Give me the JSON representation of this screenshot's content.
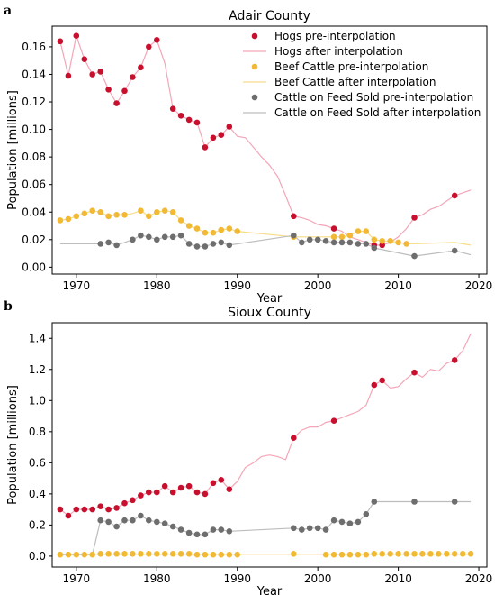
{
  "figure": {
    "panel_a": "a",
    "panel_b": "b"
  },
  "colors": {
    "hogs": "#c8102e",
    "hogs_line": "#f4a6b8",
    "beef": "#f2b935",
    "beef_line": "#f7dc8a",
    "cattle": "#6e6e6e",
    "cattle_line": "#bdbdbd"
  },
  "chart_data": [
    {
      "type": "scatter",
      "title": "Adair County",
      "xlabel": "Year",
      "ylabel": "Population [millions]",
      "xlim": [
        1967,
        2021
      ],
      "ylim": [
        -0.005,
        0.175
      ],
      "xticks": [
        1970,
        1980,
        1990,
        2000,
        2010,
        2020
      ],
      "xtick_labels": [
        "1970",
        "1980",
        "1990",
        "2000",
        "2010",
        "2020"
      ],
      "yticks": [
        0.0,
        0.02,
        0.04,
        0.06,
        0.08,
        0.1,
        0.12,
        0.14,
        0.16
      ],
      "ytick_labels": [
        "0.00",
        "0.02",
        "0.04",
        "0.06",
        "0.08",
        "0.10",
        "0.12",
        "0.14",
        "0.16"
      ],
      "legend_position": "top-right",
      "series": [
        {
          "name": "Hogs pre-interpolation",
          "kind": "points",
          "color_key": "hogs",
          "x": [
            1968,
            1969,
            1970,
            1971,
            1972,
            1973,
            1974,
            1975,
            1976,
            1977,
            1978,
            1979,
            1980,
            1982,
            1983,
            1984,
            1985,
            1986,
            1987,
            1988,
            1989,
            1997,
            2002,
            2007,
            2008,
            2012,
            2017
          ],
          "y": [
            0.164,
            0.139,
            0.168,
            0.151,
            0.14,
            0.142,
            0.129,
            0.119,
            0.128,
            0.138,
            0.145,
            0.16,
            0.165,
            0.115,
            0.11,
            0.107,
            0.105,
            0.087,
            0.094,
            0.096,
            0.102,
            0.037,
            0.028,
            0.016,
            0.016,
            0.036,
            0.052
          ]
        },
        {
          "name": "Hogs after interpolation",
          "kind": "line",
          "color_key": "hogs_line",
          "x": [
            1968,
            1969,
            1970,
            1971,
            1972,
            1973,
            1974,
            1975,
            1976,
            1977,
            1978,
            1979,
            1980,
            1981,
            1982,
            1983,
            1984,
            1985,
            1986,
            1987,
            1988,
            1989,
            1990,
            1991,
            1992,
            1993,
            1994,
            1995,
            1996,
            1997,
            1998,
            1999,
            2000,
            2001,
            2002,
            2003,
            2004,
            2005,
            2006,
            2007,
            2008,
            2009,
            2010,
            2011,
            2012,
            2013,
            2014,
            2015,
            2016,
            2017,
            2018,
            2019
          ],
          "y": [
            0.164,
            0.139,
            0.168,
            0.151,
            0.14,
            0.142,
            0.129,
            0.119,
            0.128,
            0.138,
            0.145,
            0.16,
            0.165,
            0.148,
            0.115,
            0.11,
            0.107,
            0.105,
            0.087,
            0.094,
            0.096,
            0.102,
            0.095,
            0.094,
            0.087,
            0.08,
            0.074,
            0.066,
            0.052,
            0.037,
            0.036,
            0.034,
            0.031,
            0.03,
            0.028,
            0.026,
            0.022,
            0.02,
            0.018,
            0.016,
            0.016,
            0.018,
            0.022,
            0.028,
            0.036,
            0.038,
            0.042,
            0.044,
            0.048,
            0.052,
            0.054,
            0.056
          ]
        },
        {
          "name": "Beef Cattle pre-interpolation",
          "kind": "points",
          "color_key": "beef",
          "x": [
            1968,
            1969,
            1970,
            1971,
            1972,
            1973,
            1974,
            1975,
            1976,
            1978,
            1979,
            1980,
            1981,
            1982,
            1983,
            1984,
            1985,
            1986,
            1987,
            1988,
            1989,
            1990,
            1997,
            2002,
            2003,
            2004,
            2005,
            2006,
            2007,
            2008,
            2009,
            2010,
            2011
          ],
          "y": [
            0.034,
            0.035,
            0.037,
            0.039,
            0.041,
            0.04,
            0.037,
            0.038,
            0.038,
            0.041,
            0.037,
            0.04,
            0.041,
            0.04,
            0.034,
            0.03,
            0.028,
            0.025,
            0.025,
            0.027,
            0.028,
            0.026,
            0.022,
            0.022,
            0.022,
            0.023,
            0.026,
            0.026,
            0.02,
            0.019,
            0.019,
            0.018,
            0.017
          ]
        },
        {
          "name": "Beef Cattle after interpolation",
          "kind": "line",
          "color_key": "beef_line",
          "x": [
            1968,
            1969,
            1970,
            1971,
            1972,
            1973,
            1974,
            1975,
            1976,
            1977,
            1978,
            1979,
            1980,
            1981,
            1982,
            1983,
            1984,
            1985,
            1986,
            1987,
            1988,
            1989,
            1990,
            1997,
            2002,
            2003,
            2004,
            2005,
            2006,
            2007,
            2008,
            2009,
            2010,
            2011,
            2012,
            2017,
            2019
          ],
          "y": [
            0.034,
            0.035,
            0.037,
            0.039,
            0.041,
            0.04,
            0.037,
            0.038,
            0.038,
            0.039,
            0.041,
            0.037,
            0.04,
            0.041,
            0.04,
            0.034,
            0.03,
            0.028,
            0.025,
            0.025,
            0.027,
            0.028,
            0.026,
            0.022,
            0.022,
            0.022,
            0.023,
            0.026,
            0.026,
            0.02,
            0.019,
            0.019,
            0.018,
            0.017,
            0.017,
            0.018,
            0.016
          ]
        },
        {
          "name": "Cattle on Feed Sold pre-interpolation",
          "kind": "points",
          "color_key": "cattle",
          "x": [
            1973,
            1974,
            1975,
            1977,
            1978,
            1979,
            1980,
            1981,
            1982,
            1983,
            1984,
            1985,
            1986,
            1987,
            1988,
            1989,
            1997,
            1998,
            1999,
            2000,
            2001,
            2002,
            2003,
            2004,
            2005,
            2006,
            2007,
            2012,
            2017
          ],
          "y": [
            0.017,
            0.018,
            0.016,
            0.02,
            0.023,
            0.022,
            0.02,
            0.022,
            0.022,
            0.023,
            0.017,
            0.015,
            0.015,
            0.017,
            0.018,
            0.016,
            0.023,
            0.018,
            0.02,
            0.02,
            0.019,
            0.018,
            0.018,
            0.018,
            0.017,
            0.017,
            0.014,
            0.008,
            0.012
          ]
        },
        {
          "name": "Cattle on Feed Sold after interpolation",
          "kind": "line",
          "color_key": "cattle_line",
          "x": [
            1968,
            1973,
            1974,
            1975,
            1976,
            1977,
            1978,
            1979,
            1980,
            1981,
            1982,
            1983,
            1984,
            1985,
            1986,
            1987,
            1988,
            1989,
            1997,
            1998,
            1999,
            2000,
            2001,
            2002,
            2003,
            2004,
            2005,
            2006,
            2007,
            2012,
            2017,
            2019
          ],
          "y": [
            0.017,
            0.017,
            0.018,
            0.016,
            0.018,
            0.02,
            0.023,
            0.022,
            0.02,
            0.022,
            0.022,
            0.023,
            0.017,
            0.015,
            0.015,
            0.017,
            0.018,
            0.016,
            0.023,
            0.018,
            0.02,
            0.02,
            0.019,
            0.018,
            0.018,
            0.018,
            0.017,
            0.017,
            0.014,
            0.008,
            0.012,
            0.009
          ]
        }
      ]
    },
    {
      "type": "scatter",
      "title": "Sioux County",
      "xlabel": "Year",
      "ylabel": "Population [millions]",
      "xlim": [
        1967,
        2021
      ],
      "ylim": [
        -0.07,
        1.5
      ],
      "xticks": [
        1970,
        1980,
        1990,
        2000,
        2010,
        2020
      ],
      "xtick_labels": [
        "1970",
        "1980",
        "1990",
        "2000",
        "2010",
        "2020"
      ],
      "yticks": [
        0.0,
        0.2,
        0.4,
        0.6,
        0.8,
        1.0,
        1.2,
        1.4
      ],
      "ytick_labels": [
        "0.0",
        "0.2",
        "0.4",
        "0.6",
        "0.8",
        "1.0",
        "1.2",
        "1.4"
      ],
      "series": [
        {
          "name": "Hogs pre-interpolation",
          "kind": "points",
          "color_key": "hogs",
          "x": [
            1968,
            1969,
            1970,
            1971,
            1972,
            1973,
            1974,
            1975,
            1976,
            1977,
            1978,
            1979,
            1980,
            1981,
            1982,
            1983,
            1984,
            1985,
            1986,
            1987,
            1988,
            1989,
            1997,
            2002,
            2007,
            2008,
            2012,
            2017
          ],
          "y": [
            0.3,
            0.26,
            0.3,
            0.3,
            0.3,
            0.32,
            0.3,
            0.31,
            0.34,
            0.36,
            0.39,
            0.41,
            0.41,
            0.45,
            0.41,
            0.44,
            0.45,
            0.41,
            0.4,
            0.47,
            0.49,
            0.43,
            0.76,
            0.87,
            1.1,
            1.13,
            1.18,
            1.26
          ]
        },
        {
          "name": "Hogs after interpolation",
          "kind": "line",
          "color_key": "hogs_line",
          "x": [
            1968,
            1969,
            1970,
            1971,
            1972,
            1973,
            1974,
            1975,
            1976,
            1977,
            1978,
            1979,
            1980,
            1981,
            1982,
            1983,
            1984,
            1985,
            1986,
            1987,
            1988,
            1989,
            1990,
            1991,
            1992,
            1993,
            1994,
            1995,
            1996,
            1997,
            1998,
            1999,
            2000,
            2001,
            2002,
            2003,
            2004,
            2005,
            2006,
            2007,
            2008,
            2009,
            2010,
            2011,
            2012,
            2013,
            2014,
            2015,
            2016,
            2017,
            2018,
            2019
          ],
          "y": [
            0.3,
            0.26,
            0.3,
            0.3,
            0.3,
            0.32,
            0.3,
            0.31,
            0.34,
            0.36,
            0.39,
            0.41,
            0.41,
            0.45,
            0.41,
            0.44,
            0.45,
            0.41,
            0.4,
            0.47,
            0.49,
            0.43,
            0.48,
            0.57,
            0.6,
            0.64,
            0.65,
            0.64,
            0.62,
            0.76,
            0.81,
            0.83,
            0.83,
            0.86,
            0.87,
            0.89,
            0.91,
            0.93,
            0.97,
            1.1,
            1.13,
            1.08,
            1.09,
            1.14,
            1.18,
            1.15,
            1.2,
            1.19,
            1.24,
            1.26,
            1.32,
            1.43
          ]
        },
        {
          "name": "Beef Cattle pre-interpolation",
          "kind": "points",
          "color_key": "beef",
          "x": [
            1968,
            1969,
            1970,
            1971,
            1972,
            1973,
            1974,
            1975,
            1976,
            1977,
            1978,
            1979,
            1980,
            1981,
            1982,
            1983,
            1984,
            1985,
            1986,
            1987,
            1988,
            1989,
            1990,
            1997,
            2001,
            2002,
            2003,
            2004,
            2005,
            2006,
            2007,
            2008,
            2009,
            2010,
            2011,
            2012,
            2013,
            2014,
            2015,
            2016,
            2017,
            2018,
            2019
          ],
          "y": [
            0.01,
            0.01,
            0.01,
            0.01,
            0.01,
            0.015,
            0.015,
            0.015,
            0.015,
            0.015,
            0.015,
            0.015,
            0.015,
            0.015,
            0.015,
            0.015,
            0.015,
            0.01,
            0.01,
            0.01,
            0.01,
            0.01,
            0.01,
            0.015,
            0.01,
            0.01,
            0.01,
            0.01,
            0.01,
            0.01,
            0.015,
            0.015,
            0.015,
            0.015,
            0.015,
            0.015,
            0.015,
            0.015,
            0.015,
            0.015,
            0.015,
            0.015,
            0.015
          ]
        },
        {
          "name": "Beef Cattle after interpolation",
          "kind": "line",
          "color_key": "beef_line",
          "x": [
            1968,
            2019
          ],
          "y": [
            0.012,
            0.012
          ]
        },
        {
          "name": "Cattle on Feed Sold pre-interpolation",
          "kind": "points",
          "color_key": "cattle",
          "x": [
            1973,
            1974,
            1975,
            1976,
            1977,
            1978,
            1979,
            1980,
            1981,
            1982,
            1983,
            1984,
            1985,
            1986,
            1987,
            1988,
            1989,
            1997,
            1998,
            1999,
            2000,
            2001,
            2002,
            2003,
            2004,
            2005,
            2006,
            2007,
            2012,
            2017
          ],
          "y": [
            0.23,
            0.22,
            0.19,
            0.23,
            0.23,
            0.26,
            0.23,
            0.22,
            0.21,
            0.19,
            0.17,
            0.15,
            0.14,
            0.14,
            0.17,
            0.17,
            0.16,
            0.18,
            0.17,
            0.18,
            0.18,
            0.17,
            0.23,
            0.22,
            0.21,
            0.22,
            0.27,
            0.35,
            0.35,
            0.35
          ]
        },
        {
          "name": "Cattle on Feed Sold after interpolation",
          "kind": "line",
          "color_key": "cattle_line",
          "x": [
            1968,
            1972,
            1973,
            1974,
            1975,
            1976,
            1977,
            1978,
            1979,
            1980,
            1981,
            1982,
            1983,
            1984,
            1985,
            1986,
            1987,
            1988,
            1989,
            1997,
            1998,
            1999,
            2000,
            2001,
            2002,
            2003,
            2004,
            2005,
            2006,
            2007,
            2012,
            2017,
            2019
          ],
          "y": [
            0.01,
            0.01,
            0.23,
            0.22,
            0.19,
            0.23,
            0.23,
            0.26,
            0.23,
            0.22,
            0.21,
            0.19,
            0.17,
            0.15,
            0.14,
            0.14,
            0.17,
            0.17,
            0.16,
            0.18,
            0.17,
            0.18,
            0.18,
            0.17,
            0.23,
            0.22,
            0.21,
            0.22,
            0.27,
            0.35,
            0.35,
            0.35,
            0.35
          ]
        }
      ]
    }
  ]
}
